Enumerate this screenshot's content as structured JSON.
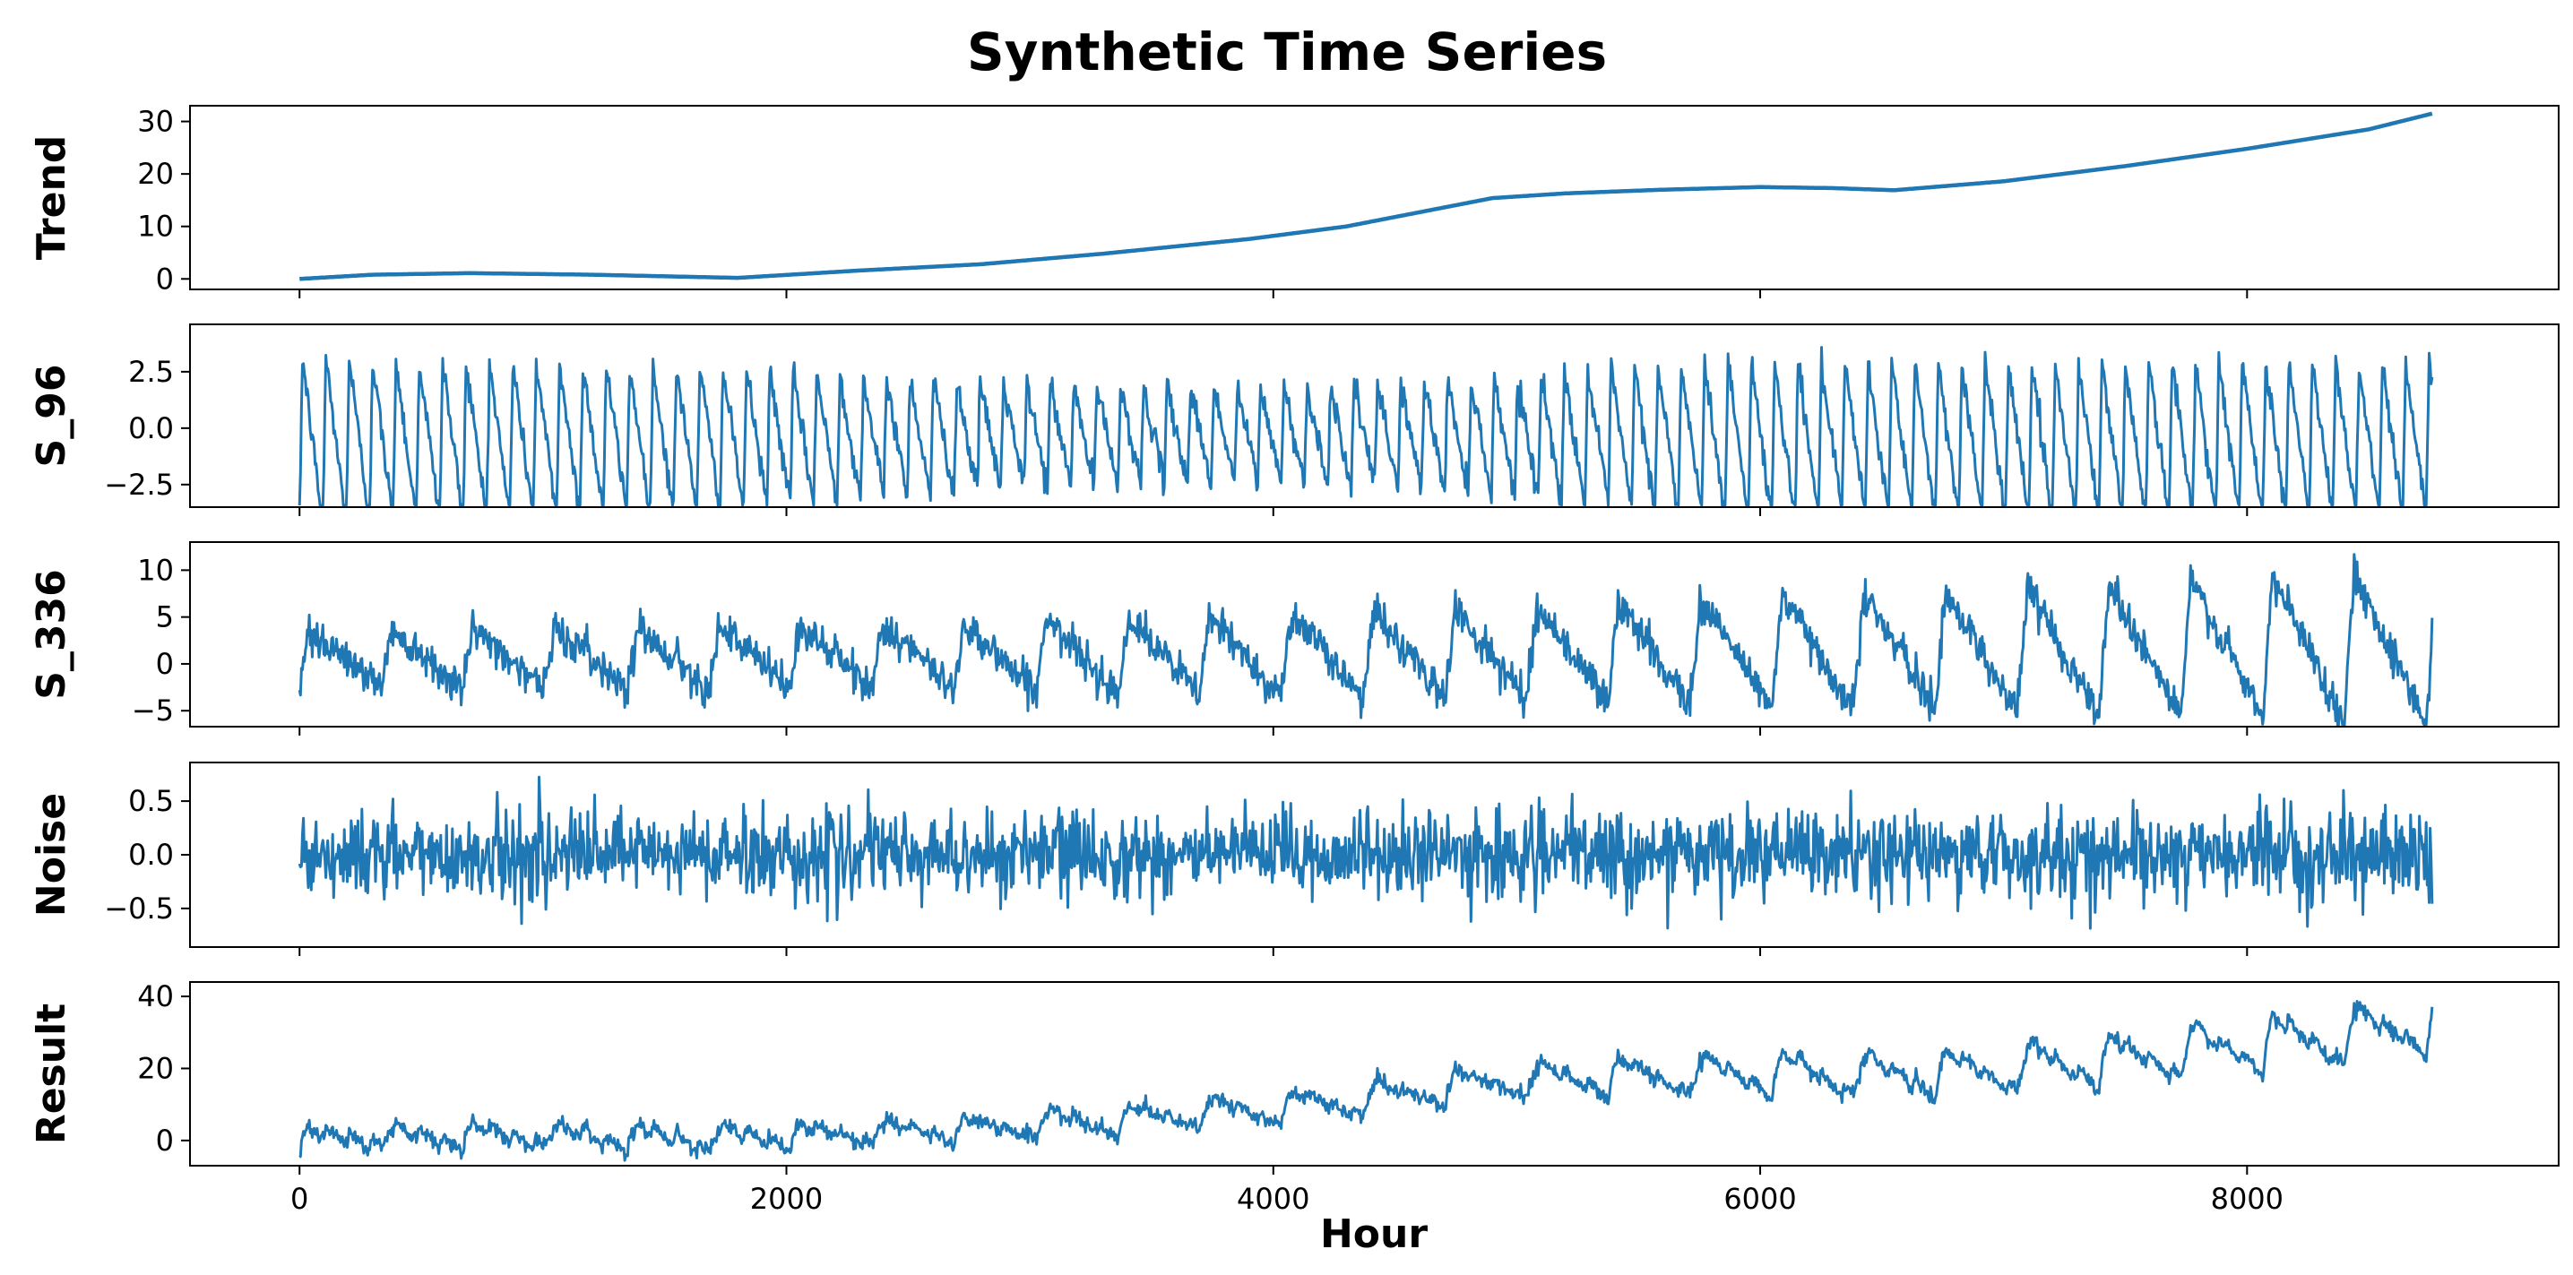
{
  "chart_data": {
    "type": "line",
    "title": "Synthetic Time Series",
    "xlabel": "Hour",
    "xlim": [
      -450,
      9280
    ],
    "x_ticks": [
      0,
      2000,
      4000,
      6000,
      8000
    ],
    "x_tick_labels": [
      "0",
      "2000",
      "4000",
      "6000",
      "8000"
    ],
    "x_range": [
      0,
      8760
    ],
    "line_color": "#1f77b4",
    "panels": [
      {
        "name": "Trend",
        "ylabel": "Trend",
        "ylim": [
          -2,
          33
        ],
        "y_ticks": [
          0,
          10,
          20,
          30
        ],
        "y_tick_labels": [
          "0",
          "10",
          "20",
          "30"
        ],
        "keypoints": [
          [
            0,
            0
          ],
          [
            300,
            0.8
          ],
          [
            700,
            1.1
          ],
          [
            1200,
            0.8
          ],
          [
            1800,
            0.2
          ],
          [
            2300,
            1.6
          ],
          [
            2800,
            2.8
          ],
          [
            3300,
            4.8
          ],
          [
            3900,
            7.6
          ],
          [
            4300,
            10.0
          ],
          [
            4900,
            15.4
          ],
          [
            5200,
            16.3
          ],
          [
            5600,
            17.0
          ],
          [
            6000,
            17.5
          ],
          [
            6300,
            17.3
          ],
          [
            6550,
            16.9
          ],
          [
            7000,
            18.6
          ],
          [
            7500,
            21.5
          ],
          [
            8000,
            24.8
          ],
          [
            8500,
            28.5
          ],
          [
            8760,
            31.5
          ]
        ],
        "noise": 0,
        "period": 0
      },
      {
        "name": "S_96",
        "ylabel": "S_96",
        "ylim": [
          -3.5,
          4.6
        ],
        "y_ticks": [
          -2.5,
          0.0,
          2.5
        ],
        "y_tick_labels": [
          "−2.5",
          "0.0",
          "2.5"
        ],
        "period": 96,
        "amp_keys": [
          [
            0,
            3.8
          ],
          [
            2000,
            3.0
          ],
          [
            3000,
            2.3
          ],
          [
            4000,
            2.1
          ],
          [
            5000,
            2.6
          ],
          [
            5500,
            3.3
          ],
          [
            6000,
            3.5
          ],
          [
            8760,
            3.4
          ]
        ],
        "offset": 0.5,
        "noise": 0.3
      },
      {
        "name": "S_336",
        "ylabel": "S_336",
        "ylim": [
          -6.7,
          13.0
        ],
        "y_ticks": [
          -5,
          0,
          5,
          10
        ],
        "y_tick_labels": [
          "−5",
          "0",
          "5",
          "10"
        ],
        "period": 336,
        "amp_keys": [
          [
            0,
            3.0
          ],
          [
            2000,
            3.3
          ],
          [
            4000,
            4.2
          ],
          [
            6000,
            5.8
          ],
          [
            8760,
            8.2
          ]
        ],
        "offset": 1.8,
        "noise": 1.0
      },
      {
        "name": "Noise",
        "ylabel": "Noise",
        "ylim": [
          -0.86,
          0.86
        ],
        "y_ticks": [
          -0.5,
          0.0,
          0.5
        ],
        "y_tick_labels": [
          "−0.5",
          "0.0",
          "0.5"
        ],
        "period": 0,
        "noise": 0.2
      },
      {
        "name": "Result",
        "ylabel": "Result",
        "ylim": [
          -7,
          44
        ],
        "y_ticks": [
          0,
          20,
          40
        ],
        "y_tick_labels": [
          "0",
          "20",
          "40"
        ],
        "composite": true,
        "noise": 1.0,
        "period": 0
      }
    ]
  }
}
